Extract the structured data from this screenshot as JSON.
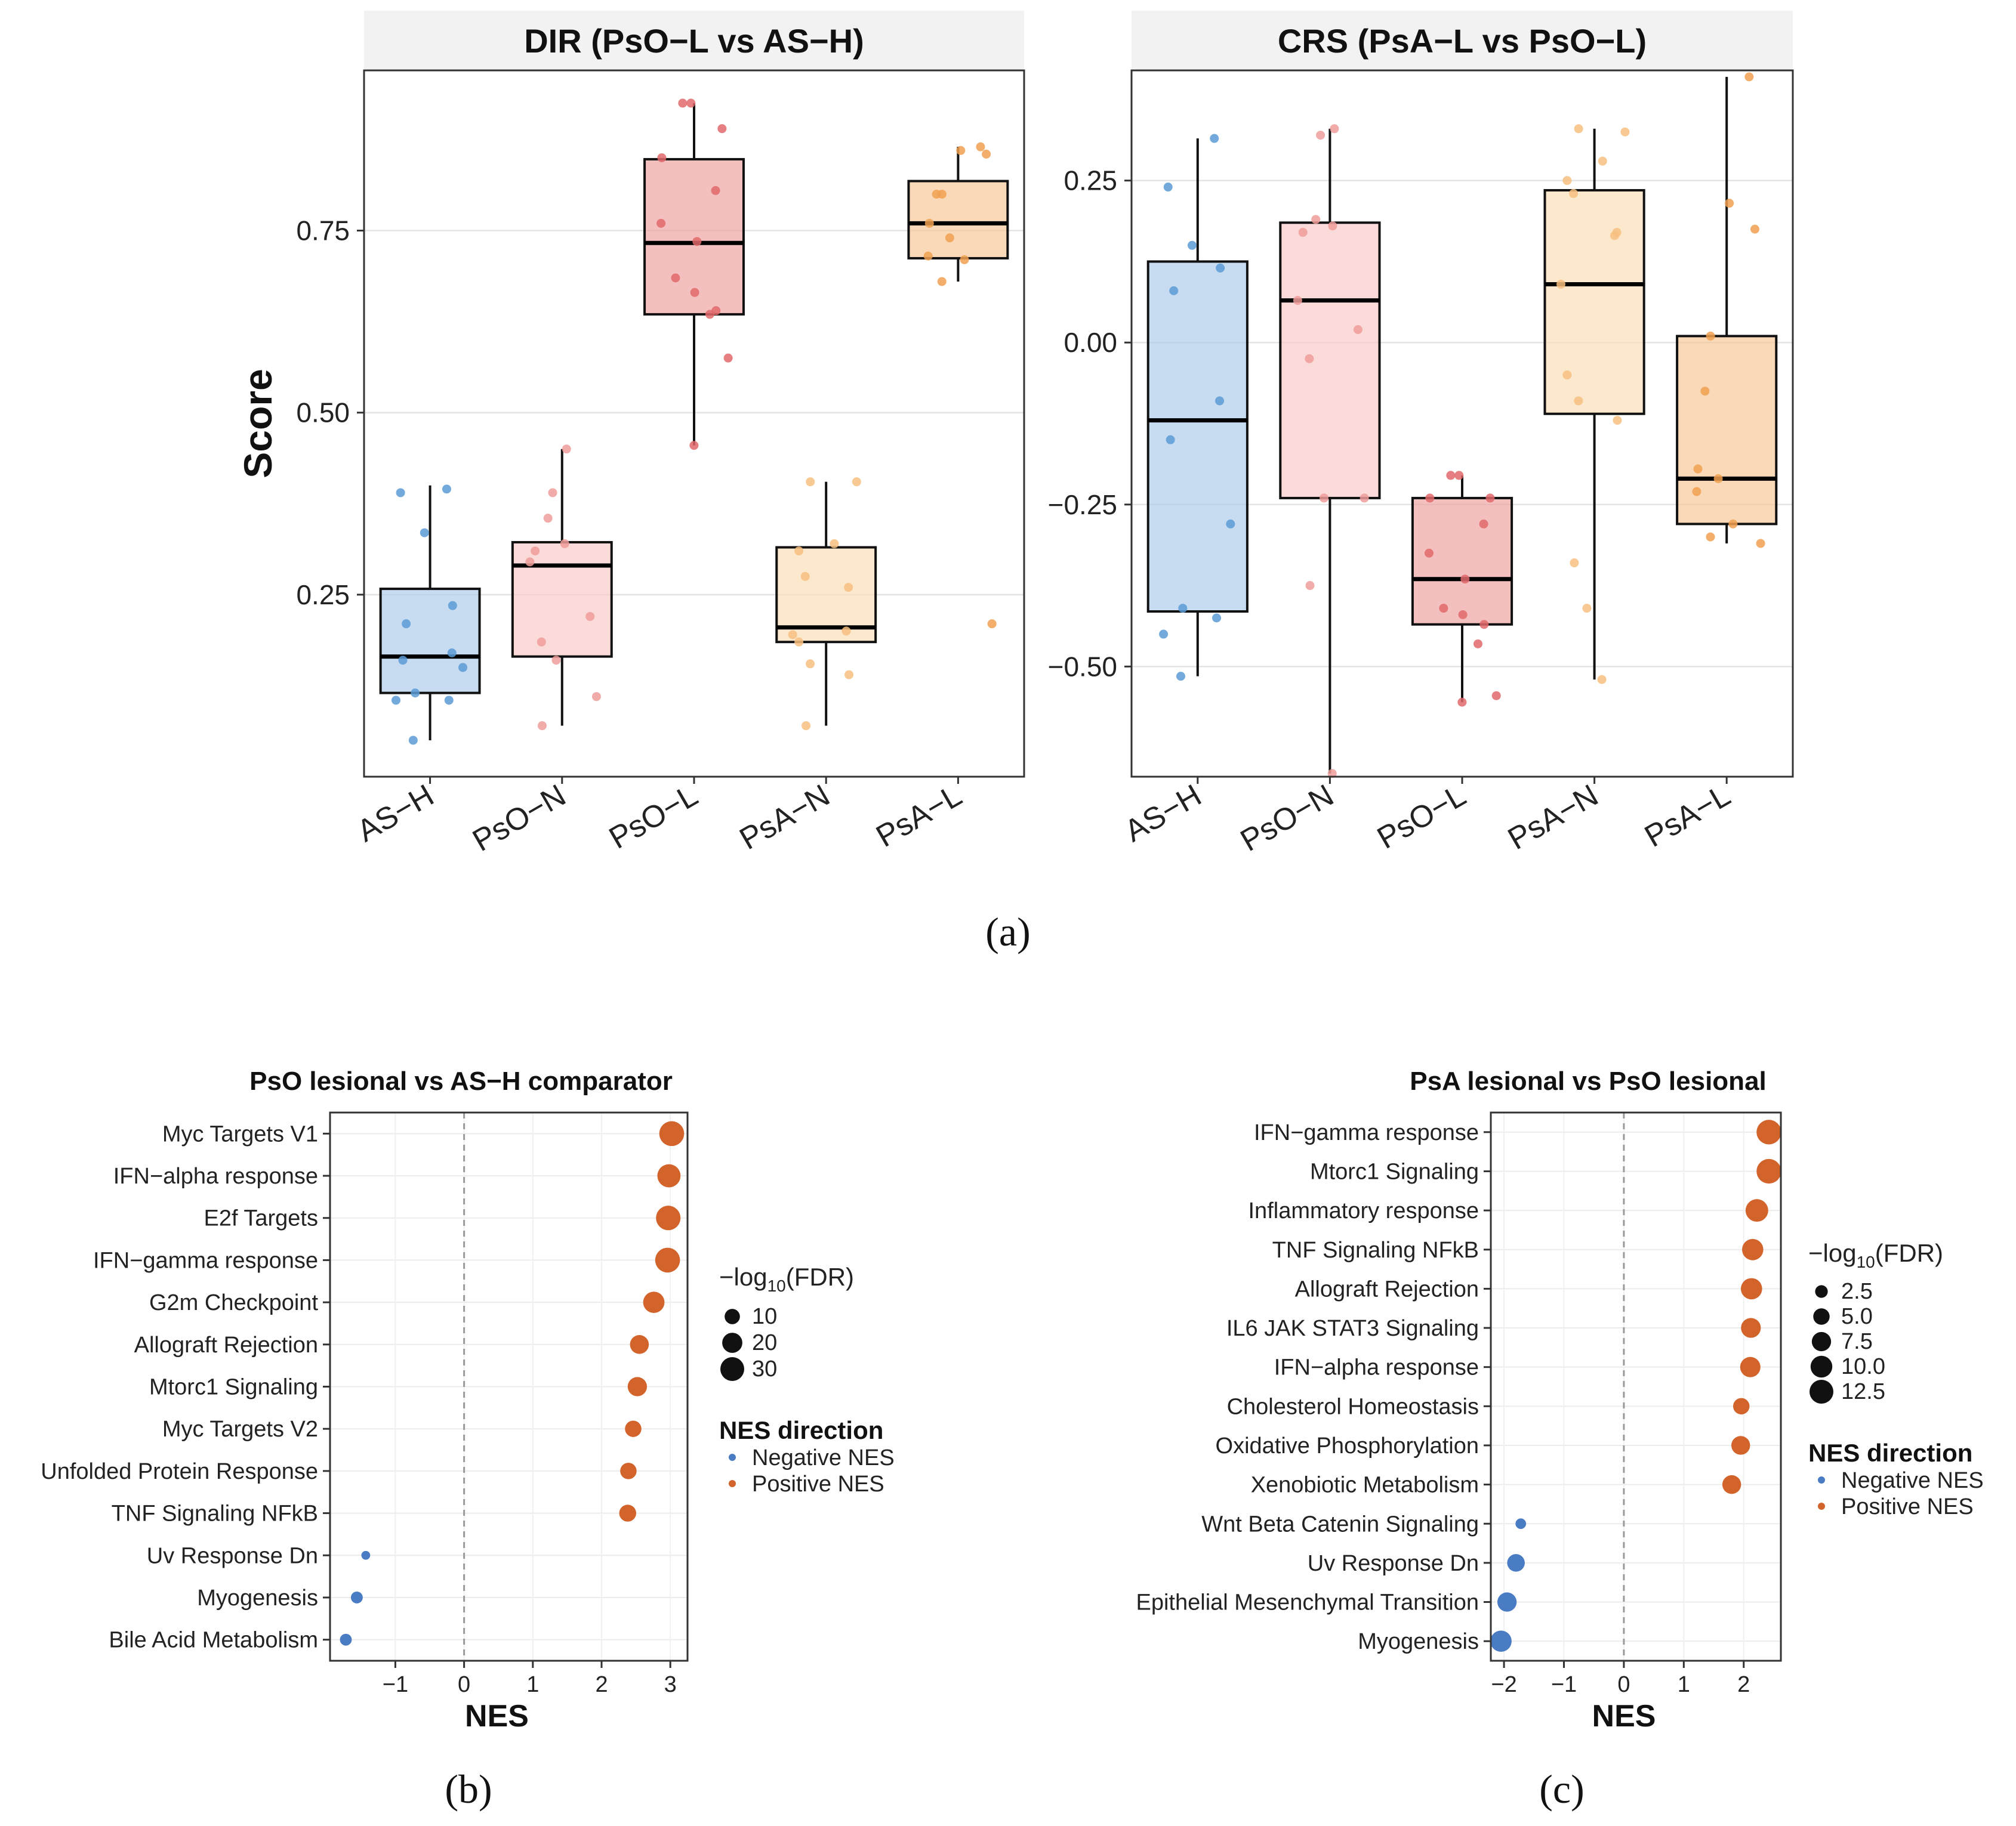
{
  "figure": {
    "label_a": "(a)",
    "label_b": "(b)",
    "label_c": "(c)"
  },
  "chart_data": [
    {
      "type": "box",
      "title": "DIR (PsO−L vs AS−H)",
      "ylabel": "Score",
      "xlabel": "",
      "ylim": [
        0.0,
        0.97
      ],
      "yticks": [
        0.25,
        0.5,
        0.75
      ],
      "ytick_labels": [
        "0.25",
        "0.50",
        "0.75"
      ],
      "grid": true,
      "categories": [
        "AS−H",
        "PsO−N",
        "PsO−L",
        "PsA−N",
        "PsA−L"
      ],
      "colors": [
        "#a9c8ea",
        "#f7c8c6",
        "#ee9e9c",
        "#fbdcb0",
        "#f8c594"
      ],
      "point_colors": [
        "#5b9bd5",
        "#ee9c9a",
        "#e0686b",
        "#f7c080",
        "#f0a050"
      ],
      "boxes": [
        {
          "min": 0.05,
          "q1": 0.115,
          "median": 0.165,
          "q3": 0.258,
          "max": 0.4
        },
        {
          "min": 0.07,
          "q1": 0.165,
          "median": 0.29,
          "q3": 0.322,
          "max": 0.45
        },
        {
          "min": 0.455,
          "q1": 0.635,
          "median": 0.733,
          "q3": 0.848,
          "max": 0.925
        },
        {
          "min": 0.07,
          "q1": 0.185,
          "median": 0.205,
          "q3": 0.315,
          "max": 0.405
        },
        {
          "min": 0.68,
          "q1": 0.712,
          "median": 0.76,
          "q3": 0.818,
          "max": 0.865
        }
      ],
      "points": [
        [
          0.395,
          0.39,
          0.335,
          0.235,
          0.21,
          0.17,
          0.16,
          0.15,
          0.115,
          0.105,
          0.105,
          0.05
        ],
        [
          0.45,
          0.39,
          0.355,
          0.32,
          0.31,
          0.295,
          0.22,
          0.185,
          0.16,
          0.11,
          0.07
        ],
        [
          0.925,
          0.925,
          0.89,
          0.85,
          0.805,
          0.76,
          0.735,
          0.685,
          0.665,
          0.64,
          0.635,
          0.575,
          0.455
        ],
        [
          0.405,
          0.405,
          0.32,
          0.31,
          0.275,
          0.26,
          0.2,
          0.195,
          0.185,
          0.155,
          0.14,
          0.07
        ],
        [
          0.865,
          0.86,
          0.855,
          0.8,
          0.8,
          0.76,
          0.74,
          0.715,
          0.71,
          0.68,
          0.21
        ]
      ]
    },
    {
      "type": "box",
      "title": "CRS (PsA−L vs PsO−L)",
      "ylabel": "",
      "xlabel": "",
      "ylim": [
        -0.67,
        0.42
      ],
      "yticks": [
        -0.5,
        -0.25,
        0.0,
        0.25
      ],
      "ytick_labels": [
        "−0.50",
        "−0.25",
        "0.00",
        "0.25"
      ],
      "grid": true,
      "categories": [
        "AS−H",
        "PsO−N",
        "PsO−L",
        "PsA−N",
        "PsA−L"
      ],
      "colors": [
        "#a9c8ea",
        "#f7c8c6",
        "#ee9e9c",
        "#fbdcb0",
        "#f8c594"
      ],
      "point_colors": [
        "#5b9bd5",
        "#ee9c9a",
        "#e0686b",
        "#f7c080",
        "#f0a050"
      ],
      "boxes": [
        {
          "min": -0.515,
          "q1": -0.415,
          "median": -0.12,
          "q3": 0.125,
          "max": 0.315
        },
        {
          "min": -0.665,
          "q1": -0.24,
          "median": 0.065,
          "q3": 0.185,
          "max": 0.33
        },
        {
          "min": -0.555,
          "q1": -0.435,
          "median": -0.365,
          "q3": -0.24,
          "max": -0.205
        },
        {
          "min": -0.52,
          "q1": -0.11,
          "median": 0.09,
          "q3": 0.235,
          "max": 0.33
        },
        {
          "min": -0.31,
          "q1": -0.28,
          "median": -0.21,
          "q3": 0.01,
          "max": 0.41
        }
      ],
      "points": [
        [
          0.315,
          0.24,
          0.15,
          0.115,
          0.08,
          -0.09,
          -0.15,
          -0.28,
          -0.41,
          -0.425,
          -0.45,
          -0.515
        ],
        [
          0.33,
          0.32,
          0.19,
          0.18,
          0.17,
          0.065,
          0.02,
          -0.025,
          -0.24,
          -0.24,
          -0.375,
          -0.665
        ],
        [
          -0.205,
          -0.205,
          -0.24,
          -0.24,
          -0.28,
          -0.325,
          -0.365,
          -0.41,
          -0.42,
          -0.435,
          -0.465,
          -0.545,
          -0.555
        ],
        [
          0.33,
          0.325,
          0.28,
          0.25,
          0.23,
          0.17,
          0.165,
          0.09,
          -0.05,
          -0.09,
          -0.12,
          -0.34,
          -0.41,
          -0.52
        ],
        [
          0.41,
          0.215,
          0.175,
          0.01,
          -0.075,
          -0.195,
          -0.21,
          -0.23,
          -0.28,
          -0.3,
          -0.31
        ]
      ]
    },
    {
      "type": "scatter",
      "title": "PsO lesional vs AS−H comparator",
      "xlabel": "NES",
      "ylabel": "",
      "xlim": [
        -1.95,
        3.25
      ],
      "xticks": [
        -1,
        0,
        1,
        2,
        3
      ],
      "xtick_labels": [
        "−1",
        "0",
        "1",
        "2",
        "3"
      ],
      "grid": true,
      "categories": [
        "Myc Targets V1",
        "IFN−alpha response",
        "E2f Targets",
        "IFN−gamma response",
        "G2m Checkpoint",
        "Allograft Rejection",
        "Mtorc1 Signaling",
        "Myc Targets V2",
        "Unfolded Protein Response",
        "TNF Signaling NFkB",
        "Uv Response Dn",
        "Myogenesis",
        "Bile Acid Metabolism"
      ],
      "nes": [
        3.02,
        2.98,
        2.97,
        2.96,
        2.76,
        2.55,
        2.52,
        2.46,
        2.39,
        2.38,
        -1.43,
        -1.56,
        -1.72
      ],
      "log10_fdr": [
        33,
        28,
        32,
        33,
        23,
        17,
        18,
        12,
        12,
        13,
        2,
        5,
        5
      ],
      "size_legend": {
        "title": "−log10(FDR)",
        "values": [
          10,
          20,
          30
        ],
        "labels": [
          "10",
          "20",
          "30"
        ]
      },
      "color_legend": {
        "title": "NES direction",
        "labels": [
          "Negative NES",
          "Positive NES"
        ],
        "colors": [
          "#4a7cc4",
          "#d2642b"
        ]
      }
    },
    {
      "type": "scatter",
      "title": "PsA lesional vs PsO lesional",
      "xlabel": "NES",
      "ylabel": "",
      "xlim": [
        -2.22,
        2.62
      ],
      "xticks": [
        -2,
        -1,
        0,
        1,
        2
      ],
      "xtick_labels": [
        "−2",
        "−1",
        "0",
        "1",
        "2"
      ],
      "grid": true,
      "categories": [
        "IFN−gamma response",
        "Mtorc1 Signaling",
        "Inflammatory response",
        "TNF Signaling NFkB",
        "Allograft Rejection",
        "IL6 JAK STAT3 Signaling",
        "IFN−alpha response",
        "Cholesterol Homeostasis",
        "Oxidative Phosphorylation",
        "Xenobiotic Metabolism",
        "Wnt Beta Catenin Signaling",
        "Uv Response Dn",
        "Epithelial Mesenchymal Transition",
        "Myogenesis"
      ],
      "nes": [
        2.42,
        2.42,
        2.22,
        2.15,
        2.13,
        2.12,
        2.11,
        1.96,
        1.95,
        1.8,
        -1.72,
        -1.8,
        -1.95,
        -2.05
      ],
      "log10_fdr": [
        13.5,
        13.5,
        11,
        9.5,
        9.5,
        8,
        8.5,
        5,
        7,
        7,
        1.5,
        6,
        7.5,
        9.5
      ],
      "size_legend": {
        "title": "−log10(FDR)",
        "values": [
          2.5,
          5.0,
          7.5,
          10.0,
          12.5
        ],
        "labels": [
          "2.5",
          "5.0",
          "7.5",
          "10.0",
          "12.5"
        ]
      },
      "color_legend": {
        "title": "NES direction",
        "labels": [
          "Negative NES",
          "Positive NES"
        ],
        "colors": [
          "#4a7cc4",
          "#d2642b"
        ]
      }
    }
  ]
}
